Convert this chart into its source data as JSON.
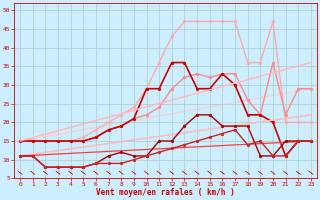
{
  "background_color": "#cceeff",
  "grid_color": "#aacccc",
  "xlabel": "Vent moyen/en rafales ( km/h )",
  "xlim": [
    -0.5,
    23.5
  ],
  "ylim": [
    5,
    52
  ],
  "yticks": [
    5,
    10,
    15,
    20,
    25,
    30,
    35,
    40,
    45,
    50
  ],
  "xticks": [
    0,
    1,
    2,
    3,
    4,
    5,
    6,
    7,
    8,
    9,
    10,
    11,
    12,
    13,
    14,
    15,
    16,
    17,
    18,
    19,
    20,
    21,
    22,
    23
  ],
  "lines": [
    {
      "x": [
        0,
        1,
        2,
        3,
        4,
        5,
        6,
        7,
        8,
        9,
        10,
        11,
        12,
        13,
        14,
        15,
        16,
        17,
        18,
        19,
        20,
        21,
        22,
        23
      ],
      "y": [
        15,
        15,
        15,
        15,
        15,
        16,
        18,
        20,
        22,
        24,
        29,
        36,
        43,
        47,
        47,
        47,
        47,
        47,
        36,
        36,
        47,
        20,
        20,
        20
      ],
      "color": "#ffaaaa",
      "lw": 1.0,
      "marker": "o",
      "ms": 2.0
    },
    {
      "x": [
        0,
        1,
        2,
        3,
        4,
        5,
        6,
        7,
        8,
        9,
        10,
        11,
        12,
        13,
        14,
        15,
        16,
        17,
        18,
        19,
        20,
        21,
        22,
        23
      ],
      "y": [
        15,
        15,
        15,
        15,
        15,
        15,
        16,
        18,
        19,
        21,
        22,
        24,
        29,
        32,
        33,
        32,
        33,
        33,
        26,
        22,
        36,
        22,
        29,
        29
      ],
      "color": "#ff8888",
      "lw": 1.0,
      "marker": "o",
      "ms": 2.0
    },
    {
      "x": [
        0,
        1,
        2,
        3,
        4,
        5,
        6,
        7,
        8,
        9,
        10,
        11,
        12,
        13,
        14,
        15,
        16,
        17,
        18,
        19,
        20,
        21,
        22,
        23
      ],
      "y": [
        15,
        15,
        15,
        15,
        15,
        15,
        16,
        18,
        19,
        21,
        29,
        29,
        36,
        36,
        29,
        29,
        33,
        30,
        22,
        22,
        20,
        11,
        15,
        15
      ],
      "color": "#cc0000",
      "lw": 1.2,
      "marker": "o",
      "ms": 2.0
    },
    {
      "x": [
        0,
        23
      ],
      "y": [
        15,
        36
      ],
      "color": "#ffbbbb",
      "lw": 1.0,
      "marker": null
    },
    {
      "x": [
        0,
        23
      ],
      "y": [
        11,
        22
      ],
      "color": "#ffbbbb",
      "lw": 1.0,
      "marker": null
    },
    {
      "x": [
        0,
        23
      ],
      "y": [
        11,
        15
      ],
      "color": "#ffcccc",
      "lw": 1.0,
      "marker": null
    },
    {
      "x": [
        0,
        23
      ],
      "y": [
        11,
        15
      ],
      "color": "#dd4444",
      "lw": 0.8,
      "marker": null
    },
    {
      "x": [
        0,
        1,
        2,
        3,
        4,
        5,
        6,
        7,
        8,
        9,
        10,
        11,
        12,
        13,
        14,
        15,
        16,
        17,
        18,
        19,
        20,
        21,
        22,
        23
      ],
      "y": [
        11,
        11,
        8,
        8,
        8,
        8,
        9,
        11,
        12,
        11,
        11,
        15,
        15,
        19,
        22,
        22,
        19,
        19,
        19,
        11,
        11,
        15,
        15,
        15
      ],
      "color": "#aa0000",
      "lw": 1.0,
      "marker": "o",
      "ms": 2.0
    },
    {
      "x": [
        0,
        1,
        2,
        3,
        4,
        5,
        6,
        7,
        8,
        9,
        10,
        11,
        12,
        13,
        14,
        15,
        16,
        17,
        18,
        19,
        20,
        21,
        22,
        23
      ],
      "y": [
        11,
        11,
        8,
        8,
        8,
        8,
        9,
        9,
        9,
        10,
        11,
        12,
        13,
        14,
        15,
        16,
        17,
        18,
        14,
        15,
        11,
        11,
        15,
        15
      ],
      "color": "#cc2222",
      "lw": 1.0,
      "marker": "o",
      "ms": 2.0
    }
  ],
  "axis_fontsize": 5.5,
  "tick_fontsize": 4.5
}
